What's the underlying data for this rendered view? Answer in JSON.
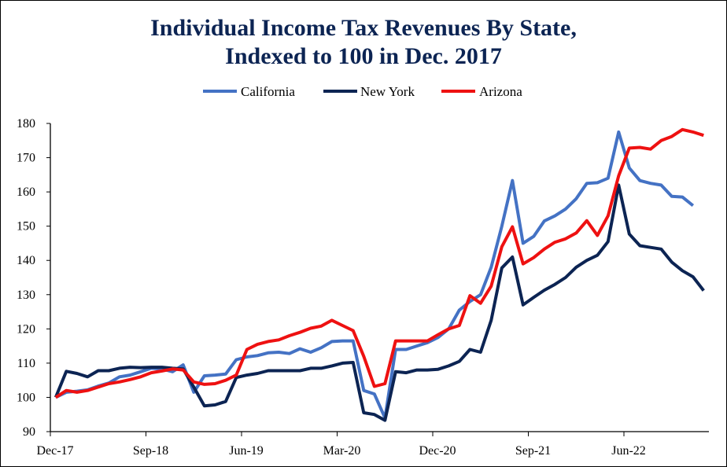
{
  "chart_data": {
    "type": "line",
    "title": "Individual Income Tax Revenues By State, Indexed to 100 in Dec. 2017",
    "title_lines": [
      "Individual Income Tax Revenues By State,",
      "Indexed to 100 in Dec. 2017"
    ],
    "xlabel": "",
    "ylabel": "",
    "ylim": [
      90,
      180
    ],
    "y_ticks": [
      90,
      100,
      110,
      120,
      130,
      140,
      150,
      160,
      170,
      180
    ],
    "x_ticks": [
      {
        "index": 0,
        "label": "Dec-17"
      },
      {
        "index": 9,
        "label": "Sep-18"
      },
      {
        "index": 18,
        "label": "Jun-19"
      },
      {
        "index": 27,
        "label": "Mar-20"
      },
      {
        "index": 36,
        "label": "Dec-20"
      },
      {
        "index": 45,
        "label": "Sep-21"
      },
      {
        "index": 54,
        "label": "Jun-22"
      }
    ],
    "x_range": [
      "Dec-17",
      "Apr-23"
    ],
    "grid": false,
    "legend_position": "top-center",
    "series": [
      {
        "name": "California",
        "color": "#4472c4",
        "start": "Dec-17",
        "values": [
          100,
          101.5,
          101.8,
          102.2,
          103.3,
          104.2,
          106,
          106.5,
          107.5,
          108.5,
          108.3,
          107.5,
          109.5,
          101.5,
          106.3,
          106.5,
          106.8,
          111,
          111.8,
          112.2,
          113,
          113.2,
          112.8,
          114.2,
          113.2,
          114.5,
          116.3,
          116.5,
          116.5,
          102,
          101,
          94,
          114,
          114,
          115,
          116,
          117.5,
          120,
          125.5,
          128,
          130,
          138,
          150,
          163.3,
          145,
          147,
          151.5,
          153,
          155,
          158,
          162.5,
          162.7,
          164,
          177.5,
          167,
          163.3,
          162.5,
          162,
          158.7,
          158.5,
          156
        ]
      },
      {
        "name": "New York",
        "color": "#0c2453",
        "start": "Dec-17",
        "values": [
          100,
          107.6,
          107,
          106,
          107.8,
          107.8,
          108.5,
          108.8,
          108.7,
          108.8,
          108.8,
          108.5,
          108.3,
          103,
          97.5,
          97.8,
          98.8,
          105.8,
          106.5,
          107,
          107.8,
          107.8,
          107.8,
          107.8,
          108.5,
          108.5,
          109.2,
          110,
          110.2,
          95.5,
          95,
          93.3,
          107.5,
          107.2,
          108,
          108,
          108.2,
          109.2,
          110.5,
          114,
          113.2,
          122.5,
          137.8,
          141,
          127,
          129.2,
          131.3,
          133,
          135,
          138,
          140,
          141.5,
          145.5,
          162,
          147.7,
          144.3,
          143.8,
          143.3,
          139.5,
          137,
          135.2,
          131.2
        ]
      },
      {
        "name": "Arizona",
        "color": "#ee1111",
        "start": "Dec-17",
        "values": [
          100,
          102,
          101.5,
          102,
          103,
          104,
          104.5,
          105.2,
          106,
          107.2,
          107.7,
          108.3,
          108,
          104.5,
          103.8,
          104,
          105,
          106.5,
          114,
          115.5,
          116.3,
          116.8,
          118,
          119,
          120.2,
          120.8,
          122.5,
          121,
          119.5,
          112,
          103.2,
          104,
          116.5,
          116.5,
          116.5,
          116.5,
          118.3,
          120,
          121,
          129.7,
          127.5,
          132.5,
          144,
          149.8,
          139,
          140.8,
          143.3,
          145.3,
          146.3,
          148,
          151.6,
          147.3,
          153,
          164.7,
          172.8,
          173,
          172.5,
          175,
          176.2,
          178.2,
          177.5,
          176.5
        ]
      }
    ]
  }
}
